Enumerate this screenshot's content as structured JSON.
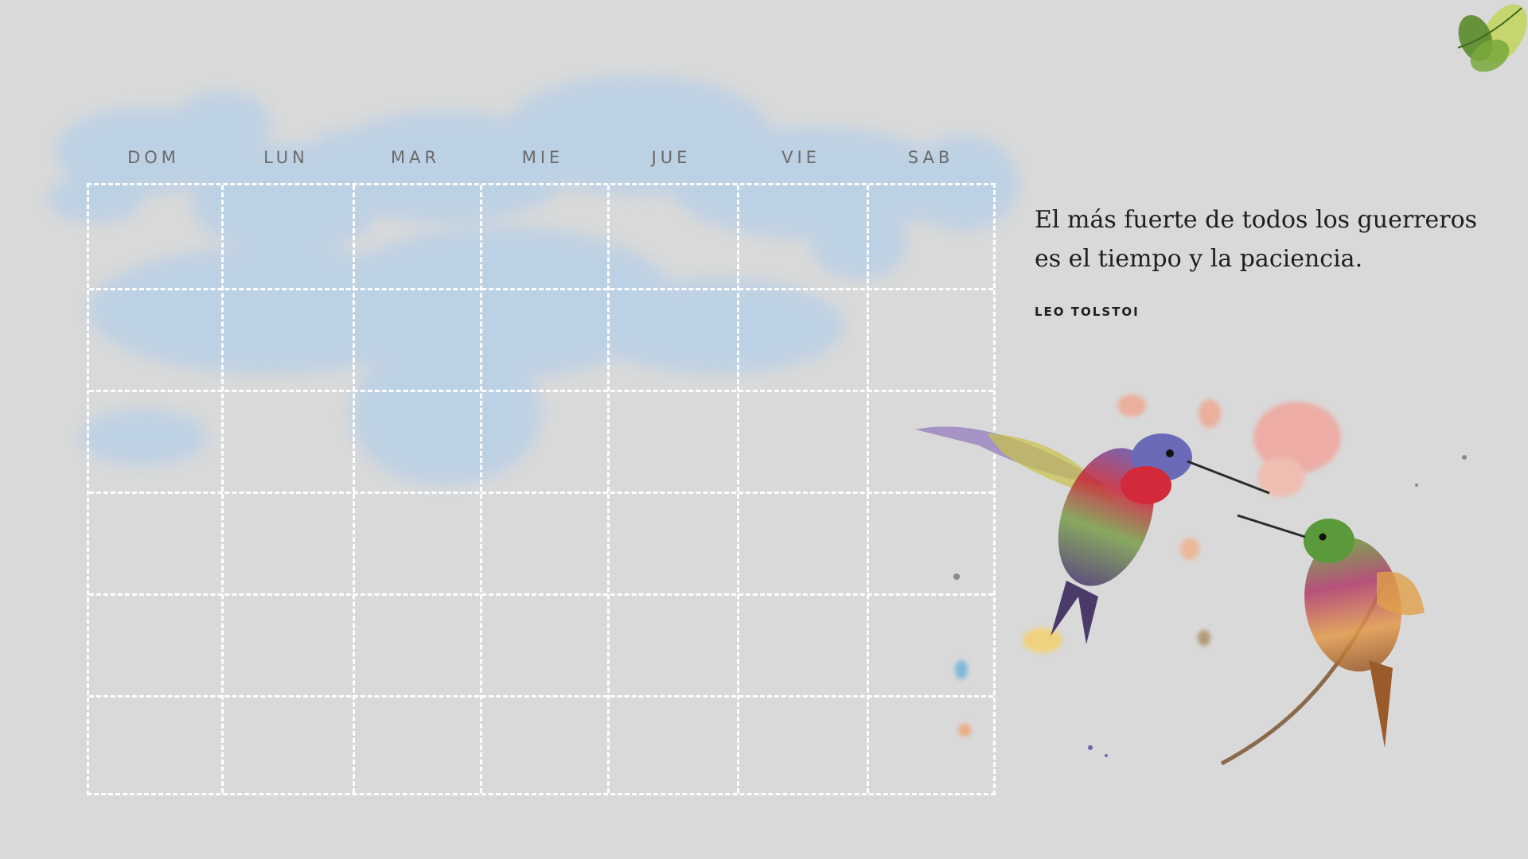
{
  "calendar": {
    "days": [
      "DOM",
      "LUN",
      "MAR",
      "MIE",
      "JUE",
      "VIE",
      "SAB"
    ],
    "rows": 6
  },
  "quote": {
    "text": "El más fuerte de todos los guerreros es el tiempo y la paciencia.",
    "author": "LEO TOLSTOI"
  },
  "decorations": {
    "clouds": "watercolor-clouds",
    "birds": "hummingbirds-illustration",
    "leaves": "leaf-ornament"
  },
  "colors": {
    "background": "#d9d9d9",
    "grid": "#ffffff",
    "cloud": "#b9d0e6"
  }
}
